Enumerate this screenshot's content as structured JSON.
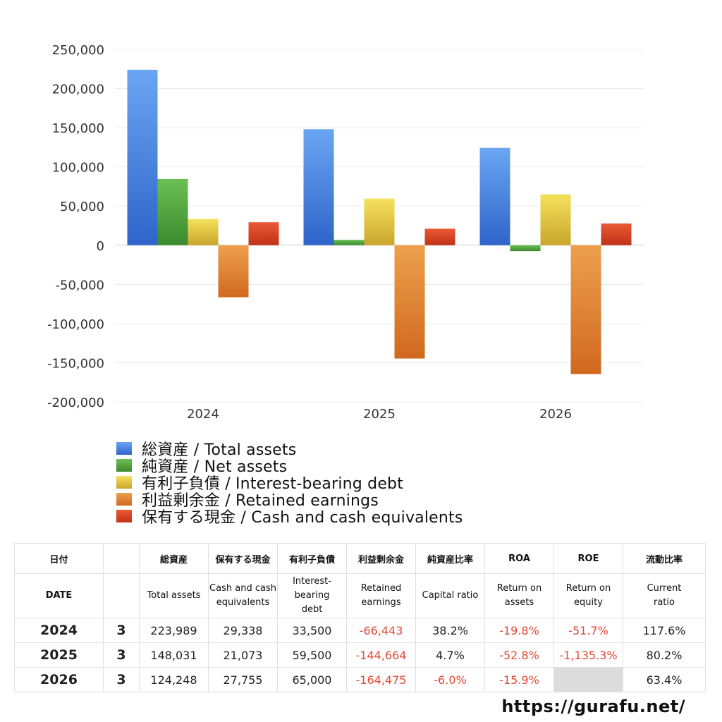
{
  "chart_data": {
    "type": "bar",
    "categories": [
      "2024",
      "2025",
      "2026"
    ],
    "series": [
      {
        "name": "総資産 / Total assets",
        "values": [
          223989,
          148031,
          124248
        ],
        "color": "#3f7fe0"
      },
      {
        "name": "純資産 / Net assets",
        "values": [
          84500,
          6900,
          -7500
        ],
        "color": "#4e9e3c"
      },
      {
        "name": "有利子負債 / Interest-bearing debt",
        "values": [
          33500,
          59500,
          65000
        ],
        "color": "#e2c33e"
      },
      {
        "name": "利益剰余金 / Retained earnings",
        "values": [
          -66443,
          -144664,
          -164475
        ],
        "color": "#e07a2c"
      },
      {
        "name": "保有する現金 /  Cash and cash equivalents",
        "values": [
          29338,
          21073,
          27755
        ],
        "color": "#d43e1f"
      }
    ],
    "ylim": [
      -200000,
      250000
    ],
    "yticks": [
      "250,000",
      "200,000",
      "150,000",
      "100,000",
      "50,000",
      "0",
      "-50,000",
      "-100,000",
      "-150,000",
      "-200,000"
    ],
    "ytick_values": [
      250000,
      200000,
      150000,
      100000,
      50000,
      0,
      -50000,
      -100000,
      -150000,
      -200000
    ],
    "grid": true,
    "legend": "bottom"
  },
  "table": {
    "header_jp": [
      "日付",
      "総資産",
      "保有する現金",
      "有利子負債",
      "利益剰余金",
      "純資産比率",
      "ROA",
      "ROE",
      "流動比率"
    ],
    "header_en": {
      "date": "DATE",
      "total_assets": "Total assets",
      "cash_1": "Cash and cash",
      "cash_2": "equivalents",
      "debt_1": "Interest-",
      "debt_2": "bearing",
      "debt_3": "debt",
      "retained_1": "Retained",
      "retained_2": "earnings",
      "capital": "Capital ratio",
      "roa_1": "Return on",
      "roa_2": "assets",
      "roe_1": "Return on",
      "roe_2": "equity",
      "current_1": "Current",
      "current_2": "ratio"
    },
    "rows": [
      {
        "year": "2024",
        "month": "3",
        "total_assets": "223,989",
        "cash": "29,338",
        "debt": "33,500",
        "retained": "-66,443",
        "capital_ratio": "38.2%",
        "roa": "-19.8%",
        "roe": "-51.7%",
        "current_ratio": "117.6%"
      },
      {
        "year": "2025",
        "month": "3",
        "total_assets": "148,031",
        "cash": "21,073",
        "debt": "59,500",
        "retained": "-144,664",
        "capital_ratio": "4.7%",
        "roa": "-52.8%",
        "roe": "-1,135.3%",
        "current_ratio": "80.2%"
      },
      {
        "year": "2026",
        "month": "3",
        "total_assets": "124,248",
        "cash": "27,755",
        "debt": "65,000",
        "retained": "-164,475",
        "capital_ratio": "-6.0%",
        "roa": "-15.9%",
        "roe": "",
        "current_ratio": "63.4%"
      }
    ]
  },
  "footer": {
    "url": "https://gurafu.net/"
  }
}
